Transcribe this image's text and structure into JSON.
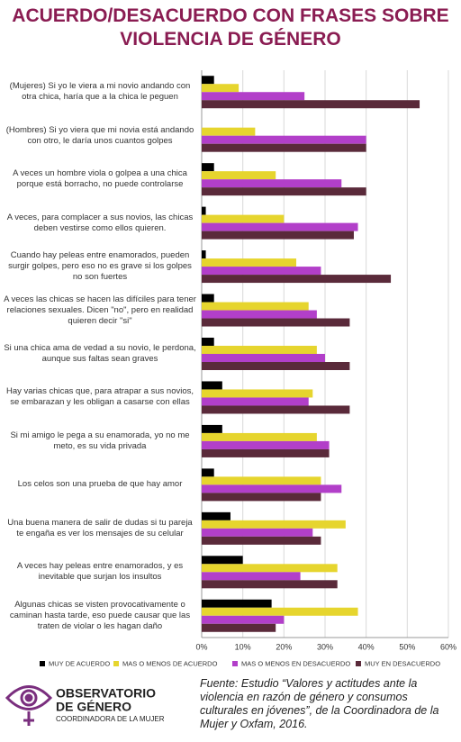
{
  "chart_data": {
    "type": "barh",
    "title": [
      "ACUERDO/DESACUERDO CON FRASES SOBRE",
      "VIOLENCIA DE GÉNERO"
    ],
    "categories": [
      "(Mujeres) Si yo le viera a mi novio andando con otra chica, haría que a la chica le peguen",
      "(Hombres) Si yo viera que mi novia está andando con otro, le daría unos cuantos golpes",
      "A veces un hombre viola o golpea a una chica porque está borracho, no puede controlarse",
      "A veces, para complacer a sus novios, las chicas deben vestirse como ellos quieren.",
      "Cuando hay peleas entre enamorados, pueden surgir golpes, pero eso no es grave si los golpes no son fuertes",
      "A veces las chicas se hacen las difíciles para tener relaciones sexuales. Dicen \"no\", pero en realidad quieren decir \"si\"",
      "Si una chica ama de vedad a su novio, le perdona, aunque sus faltas sean graves",
      "Hay varias chicas que, para atrapar a sus novios, se embarazan y les obligan a casarse con ellas",
      "Si mi amigo le pega a su enamorada, yo no me meto, es su vida privada",
      "Los celos son una prueba de que hay amor",
      "Una buena manera de salir de dudas si tu pareja te engaña es ver los mensajes de su celular",
      "A veces hay peleas entre enamorados, y es inevitable que surjan los insultos",
      "Algunas chicas se visten provocativamente o caminan hasta tarde, eso puede causar que las traten de violar o les hagan daño"
    ],
    "series": [
      {
        "name": "MUY DE ACUERDO",
        "color": "#000000",
        "values": [
          3,
          0,
          3,
          1,
          1,
          3,
          3,
          5,
          5,
          3,
          7,
          10,
          17
        ]
      },
      {
        "name": "MAS O MENOS DE ACUERDO",
        "color": "#e6d52e",
        "values": [
          9,
          13,
          18,
          20,
          23,
          26,
          28,
          27,
          28,
          29,
          35,
          33,
          38
        ]
      },
      {
        "name": "MAS O MENOS EN DESACUERDO",
        "color": "#b23fc9",
        "values": [
          25,
          40,
          34,
          38,
          29,
          28,
          30,
          26,
          31,
          34,
          27,
          24,
          20
        ]
      },
      {
        "name": "MUY EN DESACUERDO",
        "color": "#5a2a3a",
        "values": [
          53,
          40,
          40,
          37,
          46,
          36,
          36,
          36,
          31,
          29,
          29,
          33,
          18
        ]
      }
    ],
    "xlim": [
      0,
      60
    ],
    "xticks": [
      {
        "value": 0,
        "label": "0%"
      },
      {
        "value": 10,
        "label": "10%"
      },
      {
        "value": 20,
        "label": "20%"
      },
      {
        "value": 30,
        "label": "30%"
      },
      {
        "value": 40,
        "label": "40%"
      },
      {
        "value": 50,
        "label": "50%"
      },
      {
        "value": 60,
        "label": "60%"
      }
    ],
    "grid": true
  },
  "logo": {
    "lines": [
      "OBSERVATORIO",
      "DE GÉNERO",
      "COORDINADORA DE LA MUJER"
    ]
  },
  "source": "Fuente: Estudio “Valores y actitudes ante la violencia en razón de género y consumos culturales en jóvenes”, de la Coordinadora de la Mujer y Oxfam, 2016."
}
